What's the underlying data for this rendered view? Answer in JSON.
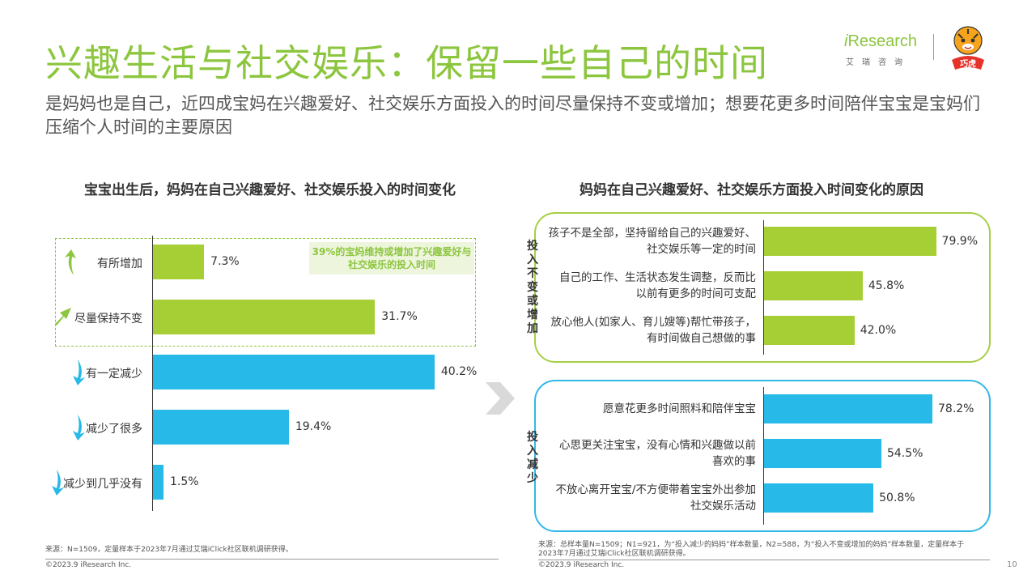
{
  "header": {
    "title": "兴趣生活与社交娱乐：保留一些自己的时间",
    "subtitle": "是妈妈也是自己，近四成宝妈在兴趣爱好、社交娱乐方面投入的时间尽量保持不变或增加；想要花更多时间陪伴宝宝是宝妈们压缩个人时间的主要原因"
  },
  "logo": {
    "brand_i": "i",
    "brand_rest": "Research",
    "brand_cn": "艾瑞咨询",
    "mascot_text": "巧虎"
  },
  "left_highlight": {
    "note": "39%的宝妈维持或增加了兴趣爱好与社交娱乐的投入时间"
  },
  "colors": {
    "green": "#a6cf36",
    "blue": "#27b9e8",
    "title_green": "#8cc63e"
  },
  "chart_data": [
    {
      "type": "bar",
      "orientation": "horizontal",
      "title": "宝宝出生后，妈妈在自己兴趣爱好、社交娱乐投入的时间变化",
      "categories": [
        "有所增加",
        "尽量保持不变",
        "有一定减少",
        "减少了很多",
        "减少到几乎没有"
      ],
      "values": [
        7.3,
        31.7,
        40.2,
        19.4,
        1.5
      ],
      "value_labels": [
        "7.3%",
        "31.7%",
        "40.2%",
        "19.4%",
        "1.5%"
      ],
      "bar_colors": [
        "green",
        "green",
        "blue",
        "blue",
        "blue"
      ],
      "icons": [
        "arrow-up-icon",
        "arrow-flat-icon",
        "arrow-down-icon",
        "arrow-down-icon",
        "arrow-down-icon"
      ],
      "xlim": [
        0,
        46
      ]
    },
    {
      "type": "bar",
      "orientation": "horizontal",
      "title": "妈妈在自己兴趣爱好、社交娱乐方面投入时间变化的原因",
      "xlim": [
        0,
        100
      ],
      "groups": [
        {
          "label": "投入不变或增加",
          "color": "green",
          "categories": [
            "孩子不是全部，坚持留给自己的兴趣爱好、社交娱乐等一定的时间",
            "自己的工作、生活状态发生调整，反而比以前有更多的时间可支配",
            "放心他人(如家人、育儿嫂等)帮忙带孩子，有时间做自己想做的事"
          ],
          "category_lines": [
            [
              "孩子不是全部，坚持留给自己的兴趣爱好、",
              "社交娱乐等一定的时间"
            ],
            [
              "自己的工作、生活状态发生调整，反而比",
              "以前有更多的时间可支配"
            ],
            [
              "放心他人(如家人、育儿嫂等)帮忙带孩子，",
              "有时间做自己想做的事"
            ]
          ],
          "values": [
            79.9,
            45.8,
            42.0
          ],
          "value_labels": [
            "79.9%",
            "45.8%",
            "42.0%"
          ]
        },
        {
          "label": "投入减少",
          "color": "blue",
          "categories": [
            "愿意花更多时间照料和陪伴宝宝",
            "心思更关注宝宝，没有心情和兴趣做以前喜欢的事",
            "不放心离开宝宝/不方便带着宝宝外出参加社交娱乐活动"
          ],
          "category_lines": [
            [
              "愿意花更多时间照料和陪伴宝宝"
            ],
            [
              "心思更关注宝宝，没有心情和兴趣做以前",
              "喜欢的事"
            ],
            [
              "不放心离开宝宝/不方便带着宝宝外出参加",
              "社交娱乐活动"
            ]
          ],
          "values": [
            78.2,
            54.5,
            50.8
          ],
          "value_labels": [
            "78.2%",
            "54.5%",
            "50.8%"
          ]
        }
      ]
    }
  ],
  "footer": {
    "left_source": "来源：N=1509，定量样本于2023年7月通过艾瑞iClick社区联机调研获得。",
    "left_copyright": "©2023.9 iResearch Inc.",
    "right_source_line1": "来源：总样本量N=1509；N1=921，为“投入减少的妈妈”样本数量，N2=588，为“投入不变或增加的妈妈”样本数量，定量样本于",
    "right_source_line2": "2023年7月通过艾瑞iClick社区联机调研获得。",
    "right_copyright": "©2023.9 iResearch Inc.",
    "page_number": "10"
  }
}
